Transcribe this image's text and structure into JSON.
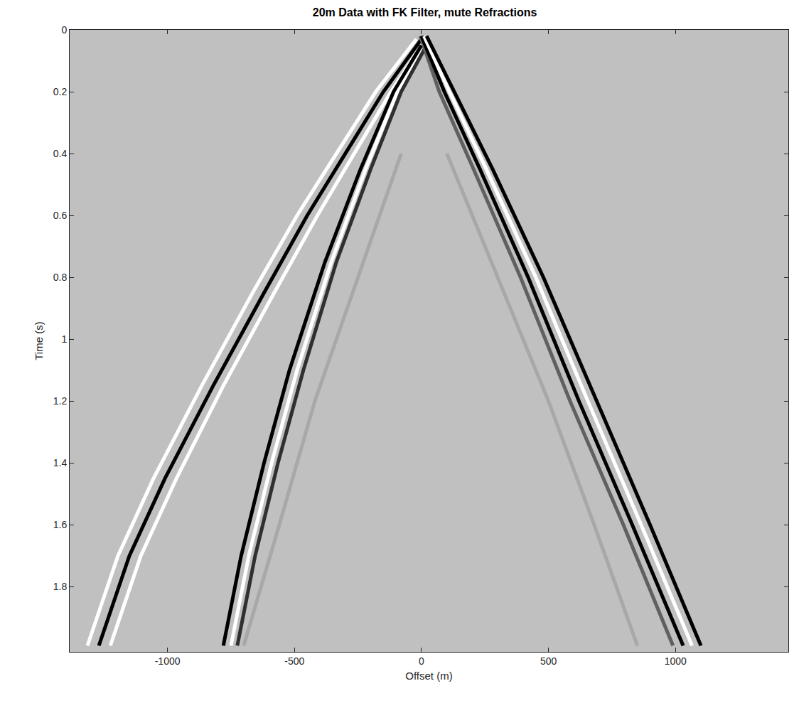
{
  "chart_data": {
    "type": "line",
    "title": "20m Data with FK Filter, mute Refractions",
    "x_label": "Offset (m)",
    "y_label": "Time (s)",
    "xlim": [
      -1385,
      1444
    ],
    "ylim": [
      0,
      2.01
    ],
    "xticks": [
      -1000,
      -500,
      0,
      500,
      1000
    ],
    "yticks": [
      0,
      0.2,
      0.4,
      0.6,
      0.8,
      1,
      1.2,
      1.4,
      1.6,
      1.8
    ],
    "grid": false,
    "series": [
      {
        "color": "#a8a8a8",
        "x": [
          100,
          300,
          500,
          680,
          850
        ],
        "values": [
          0.4,
          0.8,
          1.2,
          1.6,
          1.99
        ]
      },
      {
        "color": "#a8a8a8",
        "x": [
          -80,
          -250,
          -420,
          -560,
          -700
        ],
        "values": [
          0.4,
          0.8,
          1.2,
          1.6,
          1.99
        ]
      },
      {
        "color": "#ffffff",
        "x": [
          -20,
          -180,
          -335,
          -490,
          -665,
          -865,
          -1055,
          -1195,
          -1315
        ],
        "values": [
          0.03,
          0.2,
          0.4,
          0.6,
          0.85,
          1.15,
          1.45,
          1.7,
          1.99
        ]
      },
      {
        "color": "#ffffff",
        "x": [
          15,
          -120,
          -265,
          -410,
          -580,
          -780,
          -965,
          -1105,
          -1225
        ],
        "values": [
          0.03,
          0.2,
          0.4,
          0.6,
          0.85,
          1.15,
          1.45,
          1.7,
          1.99
        ]
      },
      {
        "color": "#000000",
        "x": [
          0,
          -150,
          -300,
          -450,
          -620,
          -820,
          -1010,
          -1150,
          -1270
        ],
        "values": [
          0.03,
          0.2,
          0.4,
          0.6,
          0.85,
          1.15,
          1.45,
          1.7,
          1.99
        ]
      },
      {
        "color": "#ffffff",
        "x": [
          10,
          -95,
          -220,
          -355,
          -490,
          -590,
          -680,
          -750
        ],
        "values": [
          0.05,
          0.2,
          0.45,
          0.75,
          1.1,
          1.4,
          1.7,
          1.99
        ]
      },
      {
        "color": "#000000",
        "x": [
          0,
          -110,
          -240,
          -380,
          -520,
          -620,
          -710,
          -780
        ],
        "values": [
          0.05,
          0.2,
          0.45,
          0.75,
          1.1,
          1.4,
          1.7,
          1.99
        ]
      },
      {
        "color": "#303030",
        "x": [
          20,
          -80,
          -200,
          -335,
          -465,
          -565,
          -655,
          -725
        ],
        "values": [
          0.05,
          0.2,
          0.45,
          0.75,
          1.1,
          1.4,
          1.7,
          1.99
        ]
      },
      {
        "color": "#606060",
        "x": [
          -5,
          70,
          205,
          390,
          585,
          795,
          990
        ],
        "values": [
          0.02,
          0.2,
          0.45,
          0.8,
          1.2,
          1.6,
          1.99
        ]
      },
      {
        "color": "#000000",
        "x": [
          0,
          90,
          230,
          420,
          620,
          830,
          1030
        ],
        "values": [
          0.02,
          0.2,
          0.45,
          0.8,
          1.2,
          1.6,
          1.99
        ]
      },
      {
        "color": "#ffffff",
        "x": [
          10,
          110,
          255,
          450,
          655,
          865,
          1065
        ],
        "values": [
          0.02,
          0.2,
          0.45,
          0.8,
          1.2,
          1.6,
          1.99
        ]
      },
      {
        "color": "#000000",
        "x": [
          20,
          130,
          280,
          480,
          690,
          900,
          1100
        ],
        "values": [
          0.02,
          0.2,
          0.45,
          0.8,
          1.2,
          1.6,
          1.99
        ]
      }
    ]
  }
}
